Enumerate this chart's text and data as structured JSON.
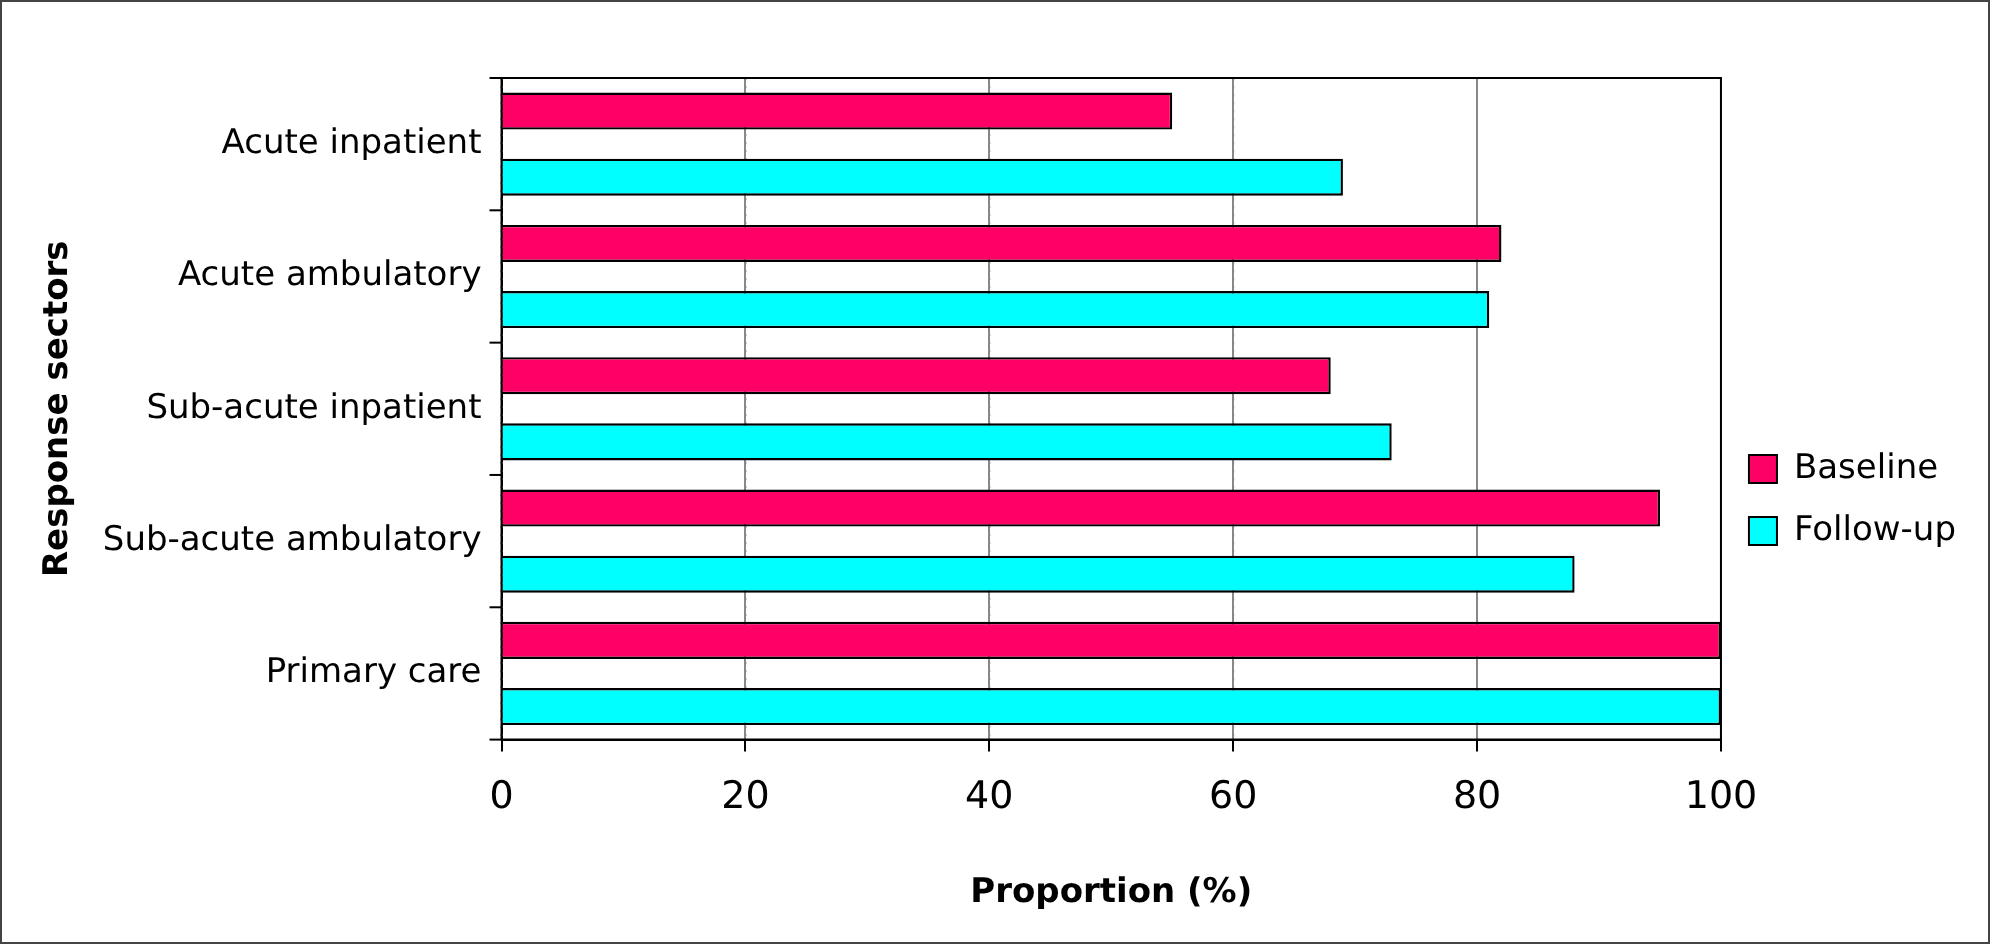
{
  "chart_data": {
    "type": "bar",
    "orientation": "horizontal",
    "xlabel": "Proportion (%)",
    "ylabel": "Response sectors",
    "categories": [
      "Acute inpatient",
      "Acute ambulatory",
      "Sub-acute inpatient",
      "Sub-acute ambulatory",
      "Primary care"
    ],
    "series": [
      {
        "name": "Baseline",
        "color": "#ff0066",
        "values": [
          55,
          82,
          68,
          95,
          100
        ]
      },
      {
        "name": "Follow-up",
        "color": "#00ffff",
        "values": [
          69,
          81,
          73,
          88,
          100
        ]
      }
    ],
    "xlim": [
      0,
      100
    ],
    "xticks": [
      0,
      20,
      40,
      60,
      80,
      100
    ],
    "grid": "x",
    "legend": "right"
  }
}
